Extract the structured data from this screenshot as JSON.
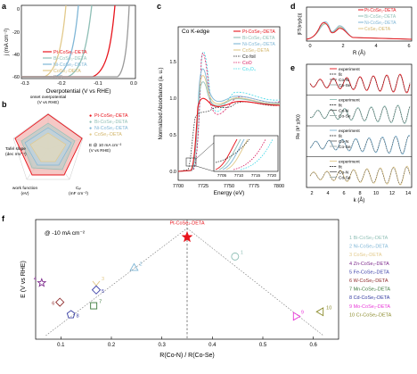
{
  "figure": {
    "panel_letters": [
      "a",
      "b",
      "c",
      "d",
      "e",
      "f"
    ]
  },
  "panel_a": {
    "xlabel": "Overpotential (V vs RHE)",
    "ylabel": "j (mA cm⁻²)",
    "xticks": [
      "-0.3",
      "-0.2",
      "-0.1",
      "0.0"
    ],
    "yticks": [
      "0",
      "-20",
      "-40",
      "-60"
    ],
    "legend": [
      {
        "label": "Pt-CoSe₂-DETA",
        "color": "#e8141c"
      },
      {
        "label": "Bi-CoSe₂-DETA",
        "color": "#8fbfb6"
      },
      {
        "label": "Ni-CoSe₂-DETA",
        "color": "#7fb6d6"
      },
      {
        "label": "CoSe₂-DETA",
        "color": "#e2c98a"
      },
      {
        "label": "Pt/C",
        "color": "#9a9a9a"
      }
    ]
  },
  "panel_b": {
    "axis_labels": [
      "onset overpotential\n(V vs RHE)",
      "E @ 10 mA cm⁻²\n(V vs RHE)",
      "Cₑₗ\n(mF cm⁻²)",
      "work function\n(eV)",
      "Tafel slope\n(dec mV⁻¹)"
    ],
    "legend": [
      {
        "label": "Pt-CoSe₂-DETA",
        "color": "#e8141c"
      },
      {
        "label": "Bi-CoSe₂-DETA",
        "color": "#8fbfb6"
      },
      {
        "label": "Ni-CoSe₂-DETA",
        "color": "#7fb6d6"
      },
      {
        "label": "CoSe₂-DETA",
        "color": "#e2c98a"
      }
    ]
  },
  "panel_c": {
    "title": "Co K-edge",
    "xlabel": "Energy (eV)",
    "ylabel": "Normalized Absorbance (a. u.)",
    "xticks": [
      "7700",
      "7725",
      "7750",
      "7775",
      "7800"
    ],
    "yticks": [
      "0.0",
      "0.5",
      "1.0",
      "1.5"
    ],
    "inset_xticks": [
      "7705",
      "7710",
      "7715",
      "7720"
    ],
    "legend": [
      {
        "label": "Pt-CoSe₂-DETA",
        "color": "#e8141c"
      },
      {
        "label": "Bi-CoSe₂-DETA",
        "color": "#8fbfb6"
      },
      {
        "label": "Ni-CoSe₂-DETA",
        "color": "#7fb6d6"
      },
      {
        "label": "CoSe₂-DETA",
        "color": "#e2c98a"
      },
      {
        "label": "Co foil",
        "color": "#222222"
      },
      {
        "label": "CoO",
        "color": "#d81b60"
      },
      {
        "label": "Co₃O₄",
        "color": "#3fd8e8"
      }
    ]
  },
  "panel_d": {
    "xlabel": "R (Å)",
    "ylabel": "|FT(k³χ(k))|",
    "xticks": [
      "0",
      "2",
      "4",
      "6"
    ],
    "legend": [
      {
        "label": "Pt-CoSe₂-DETA",
        "color": "#e8141c"
      },
      {
        "label": "Bi-CoSe₂-DETA",
        "color": "#8fbfb6"
      },
      {
        "label": "Ni-CoSe₂-DETA",
        "color": "#7fb6d6"
      },
      {
        "label": "CoSe₂-DETA",
        "color": "#e2c98a"
      }
    ]
  },
  "panel_e": {
    "xlabel": "k (Å)",
    "ylabel": "Re (k³ χ(k))",
    "xticks": [
      "2",
      "4",
      "6",
      "8",
      "10",
      "12",
      "14"
    ],
    "legend_labels": [
      "experiment",
      "fit",
      "Co-N",
      "Co-Se"
    ],
    "colors": [
      "#e8141c",
      "#8fbfb6",
      "#7fb6d6",
      "#e2c98a"
    ]
  },
  "chart_data": [
    {
      "type": "scatter",
      "panel": "f",
      "title": "@ -10 mA cm⁻²",
      "xlabel": "R(Co-N) / R(Co-Se)",
      "ylabel": "E (V vs RHE)",
      "xlim": [
        0.05,
        0.65
      ],
      "ylim": [
        -0.36,
        -0.02
      ],
      "xticks": [
        0.1,
        0.2,
        0.3,
        0.4,
        0.5,
        0.6
      ],
      "xtick_labels": [
        "0.1",
        "0.2",
        "0.3",
        "0.4",
        "0.5",
        "0.6"
      ],
      "points": [
        {
          "id": "*",
          "name": "Pt-CoSe₂-DETA",
          "x": 0.35,
          "y": -0.07,
          "marker": "star",
          "color": "#e8141c"
        },
        {
          "id": "1",
          "name": "Bi-CoSe₂-DETA",
          "x": 0.445,
          "y": -0.125,
          "marker": "circle",
          "color": "#8fbfb6"
        },
        {
          "id": "2",
          "name": "Ni-CoSe₂-DETA",
          "x": 0.245,
          "y": -0.158,
          "marker": "triangle",
          "color": "#7fb6d6"
        },
        {
          "id": "3",
          "name": "CoSe₂-DETA",
          "x": 0.17,
          "y": -0.2,
          "marker": "chevron-down",
          "color": "#e2c98a"
        },
        {
          "id": "4",
          "name": "Zn-CoSe₂-DETA",
          "x": 0.062,
          "y": -0.2,
          "marker": "star",
          "color": "#7d2a8c"
        },
        {
          "id": "5",
          "name": "Fe-CoSe₂-DETA",
          "x": 0.17,
          "y": -0.22,
          "marker": "diamond",
          "color": "#3b3fa8"
        },
        {
          "id": "6",
          "name": "W-CoSe₂-DETA",
          "x": 0.098,
          "y": -0.255,
          "marker": "diamond",
          "color": "#8e2a2a"
        },
        {
          "id": "7",
          "name": "Mn-CoSe₂-DETA",
          "x": 0.165,
          "y": -0.265,
          "marker": "square",
          "color": "#3d7a3d"
        },
        {
          "id": "8",
          "name": "Cd-CoSe₂-DETA",
          "x": 0.12,
          "y": -0.29,
          "marker": "pentagon",
          "color": "#333aa0"
        },
        {
          "id": "9",
          "name": "Mo-CoSe₂-DETA",
          "x": 0.565,
          "y": -0.295,
          "marker": "triangle-right",
          "color": "#e838d8"
        },
        {
          "id": "10",
          "name": "Cr-CoSe₂-DETA",
          "x": 0.615,
          "y": -0.282,
          "marker": "triangle-left",
          "color": "#8a8a2a"
        }
      ]
    }
  ]
}
